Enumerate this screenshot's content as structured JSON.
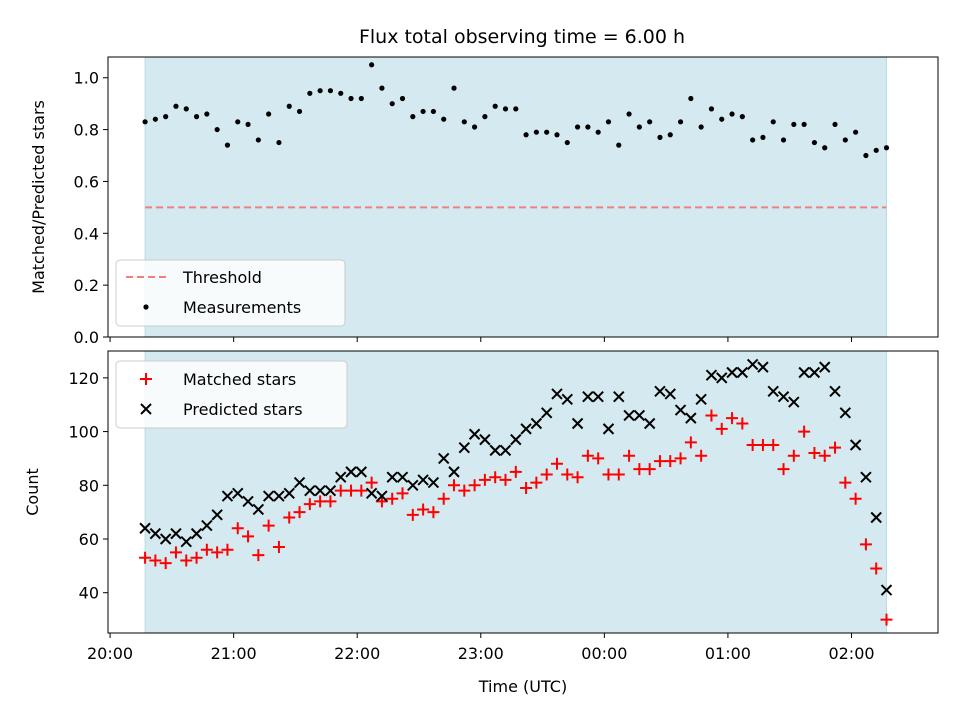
{
  "chart_data": [
    {
      "type": "scatter",
      "title": "Flux total observing time = 6.00 h",
      "xlabel": "",
      "ylabel": "Matched/Predicted stars",
      "xlim": [
        "20:00",
        "02:30"
      ],
      "ylim": [
        0.0,
        1.08
      ],
      "yticks": [
        "0.0",
        "0.2",
        "0.4",
        "0.6",
        "0.8",
        "1.0"
      ],
      "shaded_span": [
        "20:17",
        "02:17"
      ],
      "shade_color": "#d4eaf0",
      "threshold": {
        "name": "Threshold",
        "value": 0.5,
        "color": "#f08080",
        "style": "dashed"
      },
      "series": [
        {
          "name": "Measurements",
          "color": "#000000",
          "marker": "dot",
          "x": [
            "20:17",
            "20:22",
            "20:27",
            "20:32",
            "20:37",
            "20:42",
            "20:47",
            "20:52",
            "20:57",
            "21:02",
            "21:07",
            "21:12",
            "21:17",
            "21:22",
            "21:27",
            "21:32",
            "21:37",
            "21:42",
            "21:47",
            "21:52",
            "21:57",
            "22:02",
            "22:07",
            "22:12",
            "22:17",
            "22:22",
            "22:27",
            "22:32",
            "22:37",
            "22:42",
            "22:47",
            "22:52",
            "22:57",
            "23:02",
            "23:07",
            "23:12",
            "23:17",
            "23:22",
            "23:27",
            "23:32",
            "23:37",
            "23:42",
            "23:47",
            "23:52",
            "23:57",
            "00:02",
            "00:07",
            "00:12",
            "00:17",
            "00:22",
            "00:27",
            "00:32",
            "00:37",
            "00:42",
            "00:47",
            "00:52",
            "00:57",
            "01:02",
            "01:07",
            "01:12",
            "01:17",
            "01:22",
            "01:27",
            "01:32",
            "01:37",
            "01:42",
            "01:47",
            "01:52",
            "01:57",
            "02:02",
            "02:07",
            "02:12",
            "02:17"
          ],
          "y": [
            0.83,
            0.84,
            0.85,
            0.89,
            0.88,
            0.85,
            0.86,
            0.8,
            0.74,
            0.83,
            0.82,
            0.76,
            0.86,
            0.75,
            0.89,
            0.87,
            0.94,
            0.95,
            0.95,
            0.94,
            0.92,
            0.92,
            1.05,
            0.96,
            0.9,
            0.92,
            0.85,
            0.87,
            0.87,
            0.84,
            0.96,
            0.83,
            0.81,
            0.85,
            0.89,
            0.88,
            0.88,
            0.78,
            0.79,
            0.79,
            0.78,
            0.75,
            0.81,
            0.81,
            0.79,
            0.83,
            0.74,
            0.86,
            0.81,
            0.83,
            0.77,
            0.78,
            0.83,
            0.92,
            0.81,
            0.88,
            0.84,
            0.86,
            0.85,
            0.76,
            0.77,
            0.83,
            0.76,
            0.82,
            0.82,
            0.75,
            0.73,
            0.82,
            0.76,
            0.79,
            0.7,
            0.72,
            0.73
          ]
        }
      ],
      "legend": {
        "position": "lower-left",
        "entries": [
          "Threshold",
          "Measurements"
        ]
      }
    },
    {
      "type": "scatter",
      "title": "",
      "xlabel": "Time (UTC)",
      "ylabel": "Count",
      "xlim": [
        "20:00",
        "02:30"
      ],
      "ylim": [
        25,
        130
      ],
      "yticks": [
        "40",
        "60",
        "80",
        "100",
        "120"
      ],
      "xticks": [
        "20:00",
        "21:00",
        "22:00",
        "23:00",
        "00:00",
        "01:00",
        "02:00"
      ],
      "shaded_span": [
        "20:17",
        "02:17"
      ],
      "shade_color": "#d4eaf0",
      "series": [
        {
          "name": "Matched stars",
          "color": "#ff0000",
          "marker": "plus",
          "x": [
            "20:17",
            "20:22",
            "20:27",
            "20:32",
            "20:37",
            "20:42",
            "20:47",
            "20:52",
            "20:57",
            "21:02",
            "21:07",
            "21:12",
            "21:17",
            "21:22",
            "21:27",
            "21:32",
            "21:37",
            "21:42",
            "21:47",
            "21:52",
            "21:57",
            "22:02",
            "22:07",
            "22:12",
            "22:17",
            "22:22",
            "22:27",
            "22:32",
            "22:37",
            "22:42",
            "22:47",
            "22:52",
            "22:57",
            "23:02",
            "23:07",
            "23:12",
            "23:17",
            "23:22",
            "23:27",
            "23:32",
            "23:37",
            "23:42",
            "23:47",
            "23:52",
            "23:57",
            "00:02",
            "00:07",
            "00:12",
            "00:17",
            "00:22",
            "00:27",
            "00:32",
            "00:37",
            "00:42",
            "00:47",
            "00:52",
            "00:57",
            "01:02",
            "01:07",
            "01:12",
            "01:17",
            "01:22",
            "01:27",
            "01:32",
            "01:37",
            "01:42",
            "01:47",
            "01:52",
            "01:57",
            "02:02",
            "02:07",
            "02:12",
            "02:17"
          ],
          "y": [
            53,
            52,
            51,
            55,
            52,
            53,
            56,
            55,
            56,
            64,
            61,
            54,
            65,
            57,
            68,
            70,
            73,
            74,
            74,
            78,
            78,
            78,
            81,
            74,
            75,
            77,
            69,
            71,
            70,
            75,
            80,
            78,
            80,
            82,
            83,
            82,
            85,
            79,
            81,
            84,
            88,
            84,
            83,
            91,
            90,
            84,
            84,
            91,
            86,
            86,
            89,
            89,
            90,
            96,
            91,
            106,
            101,
            105,
            103,
            95,
            95,
            95,
            86,
            91,
            100,
            92,
            91,
            94,
            81,
            75,
            58,
            49,
            30
          ]
        },
        {
          "name": "Predicted stars",
          "color": "#000000",
          "marker": "x",
          "x": [
            "20:17",
            "20:22",
            "20:27",
            "20:32",
            "20:37",
            "20:42",
            "20:47",
            "20:52",
            "20:57",
            "21:02",
            "21:07",
            "21:12",
            "21:17",
            "21:22",
            "21:27",
            "21:32",
            "21:37",
            "21:42",
            "21:47",
            "21:52",
            "21:57",
            "22:02",
            "22:07",
            "22:12",
            "22:17",
            "22:22",
            "22:27",
            "22:32",
            "22:37",
            "22:42",
            "22:47",
            "22:52",
            "22:57",
            "23:02",
            "23:07",
            "23:12",
            "23:17",
            "23:22",
            "23:27",
            "23:32",
            "23:37",
            "23:42",
            "23:47",
            "23:52",
            "23:57",
            "00:02",
            "00:07",
            "00:12",
            "00:17",
            "00:22",
            "00:27",
            "00:32",
            "00:37",
            "00:42",
            "00:47",
            "00:52",
            "00:57",
            "01:02",
            "01:07",
            "01:12",
            "01:17",
            "01:22",
            "01:27",
            "01:32",
            "01:37",
            "01:42",
            "01:47",
            "01:52",
            "01:57",
            "02:02",
            "02:07",
            "02:12",
            "02:17"
          ],
          "y": [
            64,
            62,
            60,
            62,
            59,
            62,
            65,
            69,
            76,
            77,
            74,
            71,
            76,
            76,
            77,
            81,
            78,
            78,
            78,
            83,
            85,
            85,
            77,
            76,
            83,
            83,
            80,
            82,
            81,
            90,
            85,
            94,
            99,
            97,
            93,
            93,
            97,
            101,
            103,
            107,
            114,
            112,
            103,
            113,
            113,
            101,
            113,
            106,
            106,
            103,
            115,
            114,
            108,
            105,
            112,
            121,
            120,
            122,
            122,
            125,
            124,
            115,
            113,
            111,
            122,
            122,
            124,
            115,
            107,
            95,
            83,
            68,
            41
          ]
        }
      ],
      "legend": {
        "position": "top-left",
        "entries": [
          "Matched stars",
          "Predicted stars"
        ]
      }
    }
  ]
}
